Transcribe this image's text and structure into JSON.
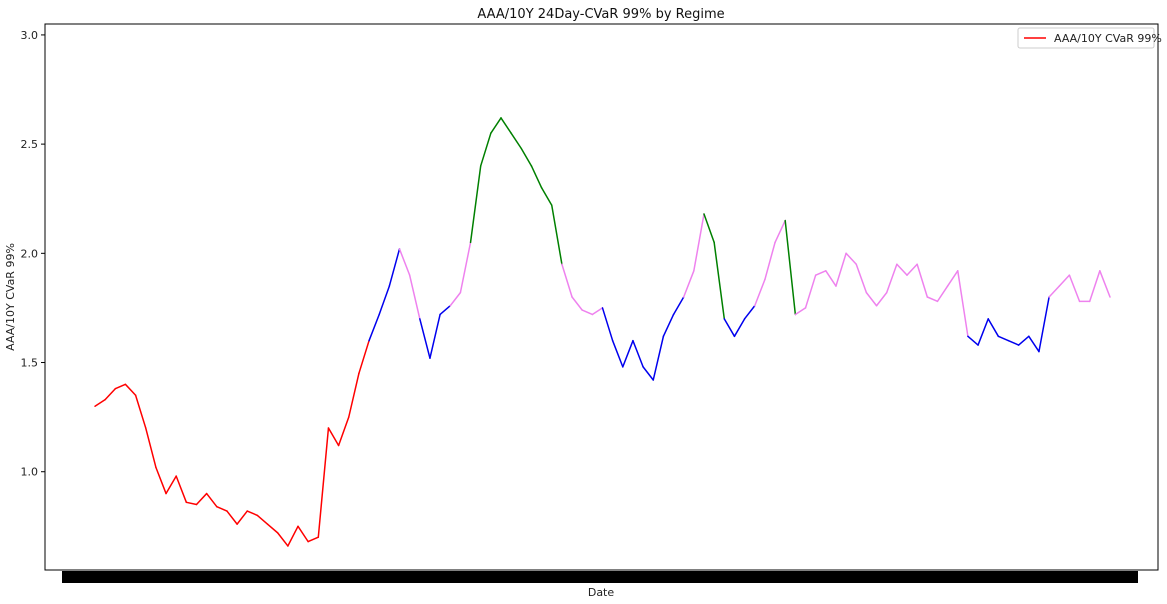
{
  "chart_data": {
    "type": "line",
    "title": "AAA/10Y 24Day-CVaR 99% by Regime",
    "xlabel": "Date",
    "ylabel": "AAA/10Y CVaR 99%",
    "ylim": [
      0.55,
      3.05
    ],
    "yticks": [
      1.0,
      1.5,
      2.0,
      2.5,
      3.0
    ],
    "ytick_labels": [
      "1.0",
      "1.5",
      "2.0",
      "2.5",
      "3.0"
    ],
    "x_tick_labels_note": "",
    "grid": false,
    "legend": {
      "placement": "top-right",
      "entries": [
        {
          "label": "AAA/10Y CVaR 99%",
          "color": "#ff0000"
        }
      ]
    },
    "regime_colors": {
      "red": "#ff0000",
      "blue": "#0000ee",
      "violet": "#ee82ee",
      "green": "#008000"
    },
    "series": [
      {
        "x": [
          0,
          1,
          2,
          3,
          4,
          5,
          6,
          7,
          8,
          9,
          10,
          11,
          12,
          13,
          14,
          15,
          16,
          17,
          18,
          19,
          20,
          21,
          22,
          23,
          24,
          25,
          26,
          27,
          28,
          29,
          30,
          31,
          32,
          33,
          34,
          35,
          36,
          37,
          38,
          39,
          40,
          41,
          42,
          43,
          44,
          45,
          46,
          47,
          48,
          49,
          50,
          51,
          52,
          53,
          54,
          55,
          56,
          57,
          58,
          59,
          60,
          61,
          62,
          63,
          64,
          65,
          66,
          67,
          68,
          69,
          70,
          71,
          72,
          73,
          74,
          75,
          76,
          77,
          78,
          79,
          80,
          81,
          82,
          83,
          84,
          85,
          86,
          87,
          88,
          89,
          90,
          91,
          92,
          93,
          94,
          95,
          96,
          97,
          98,
          99,
          100
        ],
        "values": [
          1.3,
          1.33,
          1.38,
          1.4,
          1.35,
          1.2,
          1.02,
          0.9,
          0.98,
          0.86,
          0.85,
          0.9,
          0.84,
          0.82,
          0.76,
          0.82,
          0.8,
          0.76,
          0.72,
          0.66,
          0.75,
          0.68,
          0.7,
          1.2,
          1.12,
          1.25,
          1.45,
          1.6,
          1.72,
          1.85,
          2.02,
          1.9,
          1.7,
          1.52,
          1.72,
          1.76,
          1.82,
          2.05,
          2.4,
          2.55,
          2.62,
          2.55,
          2.48,
          2.4,
          2.3,
          2.22,
          1.95,
          1.8,
          1.74,
          1.72,
          1.75,
          1.6,
          1.48,
          1.6,
          1.48,
          1.42,
          1.62,
          1.72,
          1.8,
          1.92,
          2.18,
          2.05,
          1.7,
          1.62,
          1.7,
          1.76,
          1.88,
          2.05,
          2.15,
          1.72,
          1.75,
          1.9,
          1.92,
          1.85,
          2.0,
          1.95,
          1.82,
          1.76,
          1.82,
          1.95,
          1.9,
          1.95,
          1.8,
          1.78,
          1.85,
          1.92,
          1.62,
          1.58,
          1.7,
          1.62,
          1.6,
          1.58,
          1.62,
          1.55,
          1.8,
          1.85,
          1.9,
          1.78,
          1.78,
          1.92,
          1.8
        ],
        "regime": [
          "red",
          "red",
          "red",
          "red",
          "red",
          "red",
          "red",
          "red",
          "red",
          "red",
          "red",
          "red",
          "red",
          "red",
          "red",
          "red",
          "red",
          "red",
          "red",
          "red",
          "red",
          "red",
          "red",
          "red",
          "red",
          "red",
          "red",
          "blue",
          "blue",
          "blue",
          "violet",
          "violet",
          "blue",
          "blue",
          "blue",
          "violet",
          "violet",
          "green",
          "green",
          "green",
          "green",
          "green",
          "green",
          "green",
          "green",
          "green",
          "violet",
          "violet",
          "violet",
          "violet",
          "blue",
          "blue",
          "blue",
          "blue",
          "blue",
          "blue",
          "blue",
          "blue",
          "violet",
          "violet",
          "green",
          "green",
          "blue",
          "blue",
          "blue",
          "violet",
          "violet",
          "violet",
          "green",
          "violet",
          "violet",
          "violet",
          "violet",
          "violet",
          "violet",
          "violet",
          "violet",
          "violet",
          "violet",
          "violet",
          "violet",
          "violet",
          "violet",
          "violet",
          "violet",
          "violet",
          "blue",
          "blue",
          "blue",
          "blue",
          "blue",
          "blue",
          "blue",
          "blue",
          "violet",
          "violet",
          "violet",
          "violet",
          "violet",
          "violet",
          "violet"
        ]
      }
    ]
  }
}
